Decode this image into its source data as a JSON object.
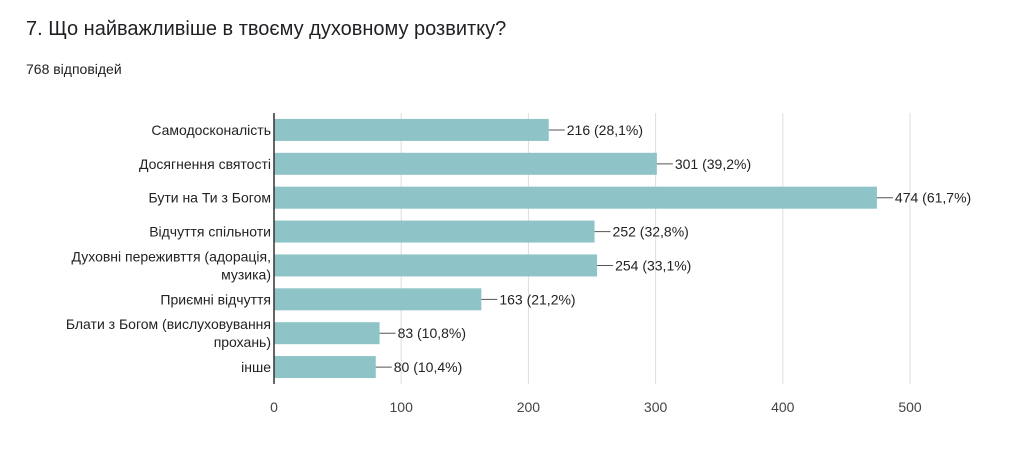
{
  "question": {
    "title": "7. Що найважливіше в твоєму духовному розвитку?",
    "responses": "768 відповідей"
  },
  "chart_data": {
    "type": "bar",
    "orientation": "horizontal",
    "title": "",
    "xlabel": "",
    "ylabel": "",
    "categories": [
      [
        "Самодосконалість"
      ],
      [
        "Досягнення святості"
      ],
      [
        "Бути на Ти з Богом"
      ],
      [
        "Відчуття спільноти"
      ],
      [
        "Духовні переживття (адорація,",
        "музика)"
      ],
      [
        "Приємні відчуття"
      ],
      [
        "Блати з Богом (вислуховування",
        "прохань)"
      ],
      [
        "інше"
      ]
    ],
    "values": [
      216,
      301,
      474,
      252,
      254,
      163,
      83,
      80
    ],
    "data_labels": [
      "216 (28,1%)",
      "301 (39,2%)",
      "474 (61,7%)",
      "252 (32,8%)",
      "254 (33,1%)",
      "163 (21,2%)",
      "83 (10,8%)",
      "80 (10,4%)"
    ],
    "xlim": [
      0,
      500
    ],
    "ticks": [
      0,
      100,
      200,
      300,
      400,
      500
    ],
    "grid": true,
    "bar_color": "#8ec3c7",
    "grid_color": "#dddddd",
    "axis_color": "#333333"
  }
}
